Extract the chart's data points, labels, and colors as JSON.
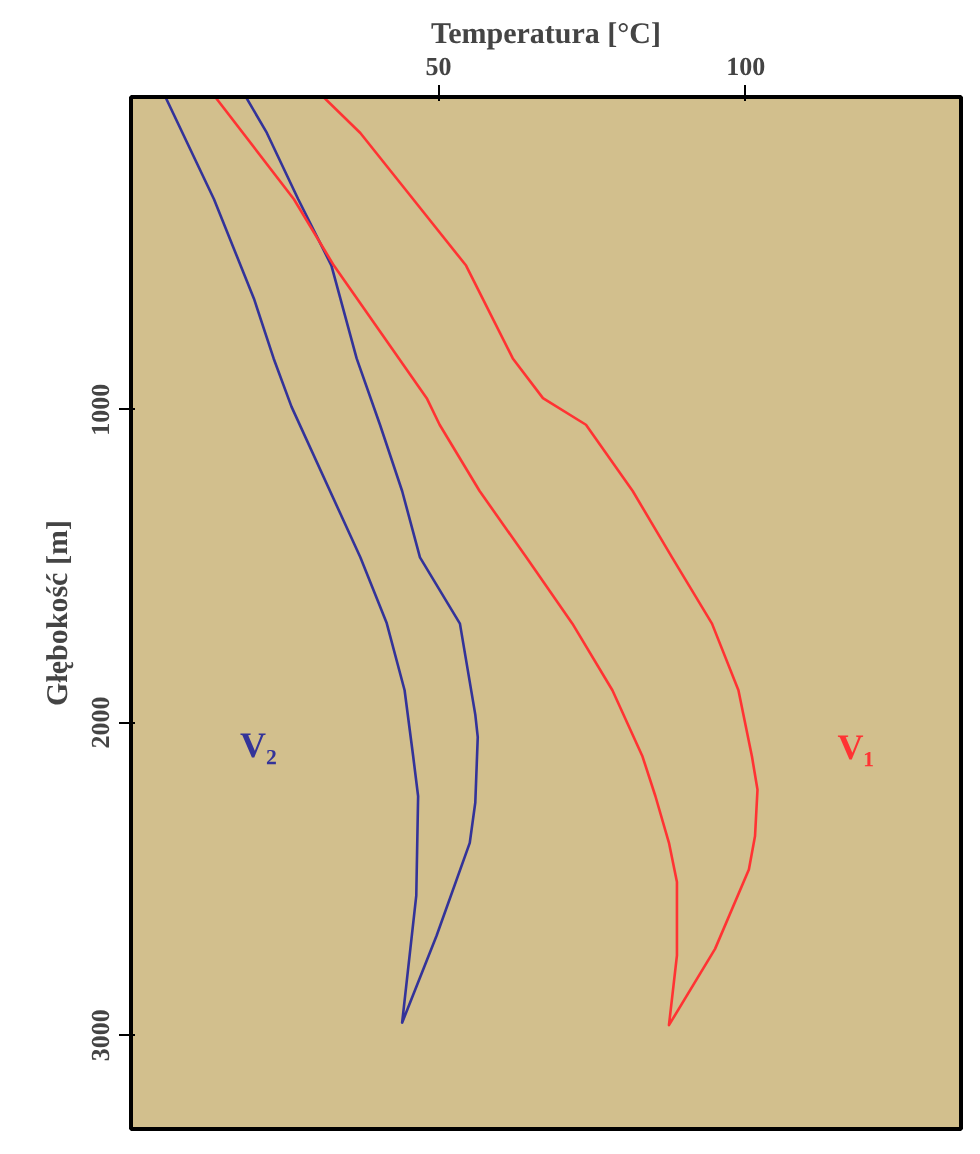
{
  "chart_data": {
    "type": "line",
    "xlabel": "Temperatura [°C]",
    "ylabel": "Głębokość [m]",
    "xlim": [
      0,
      135
    ],
    "xticks": [
      50,
      100
    ],
    "ylim": [
      3300,
      0
    ],
    "yticks": [
      1000,
      2000,
      3000
    ],
    "grid": false,
    "marker": "none",
    "line_style": "solid",
    "series": [
      {
        "name": "V₂",
        "color": "#333399",
        "x": [
          5.6,
          13.5,
          20.0,
          23.2,
          26.1,
          37.3,
          41.6,
          44.5,
          45.9,
          46.7,
          46.4,
          44.1,
          49.7,
          55.1,
          56.0,
          56.4,
          56.0,
          53.5,
          47.0,
          44.1,
          40.5,
          36.7,
          32.6,
          27.2,
          22.1,
          18.7
        ],
        "values": [
          0,
          327,
          645,
          836,
          990,
          1472,
          1683,
          1897,
          2109,
          2236,
          2554,
          2960,
          2682,
          2385,
          2256,
          2047,
          1975,
          1684,
          1472,
          1260,
          1048,
          836,
          539,
          327,
          115,
          0
        ]
      },
      {
        "name": "V₁",
        "color": "#ff3333",
        "x": [
          13.7,
          26.5,
          33.0,
          48.1,
          50.2,
          56.7,
          64.3,
          71.8,
          78.3,
          83.2,
          85.3,
          87.5,
          88.8,
          88.8,
          87.5,
          95.0,
          100.5,
          101.5,
          101.9,
          101.0,
          98.8,
          94.5,
          88.0,
          81.6,
          74.0,
          67.0,
          62.1,
          54.5,
          45.9,
          37.3,
          31.3
        ],
        "values": [
          0,
          327,
          539,
          963,
          1048,
          1260,
          1472,
          1684,
          1897,
          2109,
          2236,
          2385,
          2510,
          2745,
          2968,
          2724,
          2470,
          2363,
          2215,
          2109,
          1897,
          1684,
          1472,
          1260,
          1048,
          963,
          836,
          539,
          327,
          115,
          0
        ]
      }
    ]
  }
}
